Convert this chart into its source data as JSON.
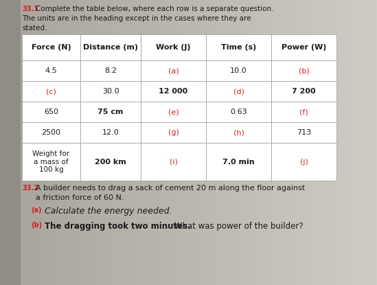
{
  "bg_color_left": "#b0aba3",
  "bg_color_right": "#ccc8c0",
  "bg_mid": "#c4c0b8",
  "title_number": "33.1",
  "title_text": "Complete the table below, where each row is a separate question.",
  "title_text2": "The units are in the heading except in the cases where they are",
  "stated_text": "stated.",
  "headers": [
    "Force (N)",
    "Distance (m)",
    "Work (J)",
    "Time (s)",
    "Power (W)"
  ],
  "rows": [
    [
      "4.5",
      "8.2",
      "(a)",
      "10.0",
      "(b)"
    ],
    [
      "(c)",
      "30.0",
      "12 000",
      "(d)",
      "7 200"
    ],
    [
      "650",
      "75 cm",
      "(e)",
      "0.63",
      "(f)"
    ],
    [
      "2500",
      "12.0",
      "(g)",
      "(h)",
      "713"
    ],
    [
      "Weight for\na mass of\n100 kg",
      "200 km",
      "(i)",
      "7.0 min",
      "(j)"
    ]
  ],
  "answer_cells": [
    "(a)",
    "(b)",
    "(c)",
    "(d)",
    "(e)",
    "(f)",
    "(g)",
    "(h)",
    "(i)",
    "(j)"
  ],
  "answer_color": "#cc2222",
  "normal_color": "#1a1a1a",
  "bold_cells": [
    "12 000",
    "7 200",
    "75 cm",
    "200 km",
    "7.0 min"
  ],
  "q2_number": "33.2",
  "q2_line1": "A builder needs to drag a sack of cement 20 m along the floor against",
  "q2_line2": "a friction force of 60 N.",
  "qa_label": "(a)",
  "qa_text": "Calculate the energy needed.",
  "qb_label": "(b)",
  "qb_text_bold": "The dragging took two minutes.",
  "qb_text_normal": " What was power of the builder?"
}
